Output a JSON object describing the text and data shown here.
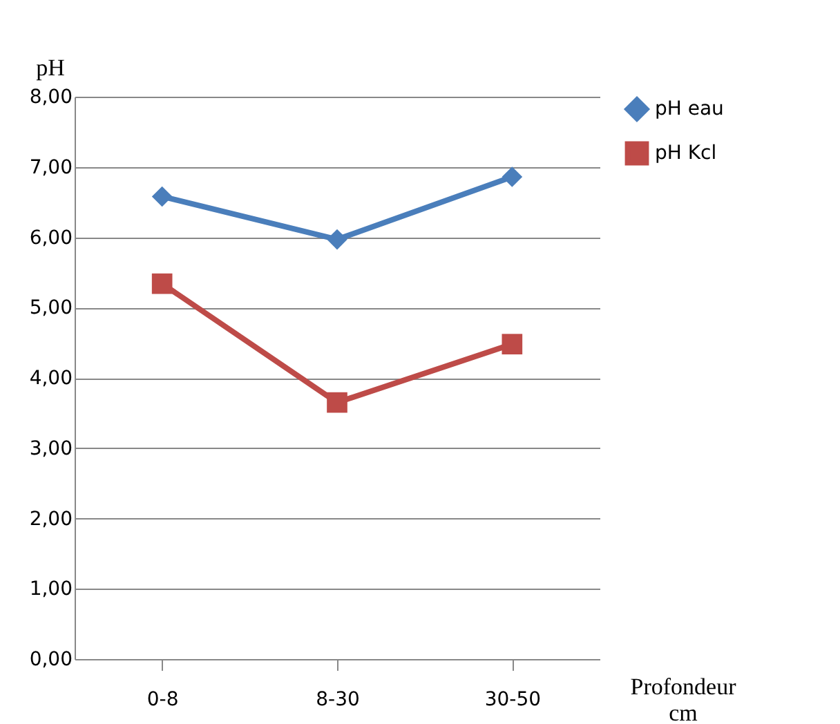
{
  "chart_data": {
    "type": "line",
    "ylabel": "pH",
    "xlabel": "Profondeur cm",
    "categories": [
      "0-8",
      "8-30",
      "30-50"
    ],
    "series": [
      {
        "name": "pH eau",
        "color": "#4a7ebb",
        "marker": "diamond",
        "values": [
          6.58,
          5.97,
          6.86
        ]
      },
      {
        "name": "pH Kcl",
        "color": "#be4b48",
        "marker": "square",
        "values": [
          5.34,
          3.65,
          4.48
        ]
      }
    ],
    "ylim": [
      0,
      8
    ],
    "yticks": [
      {
        "value": 0,
        "label": "0,00"
      },
      {
        "value": 1,
        "label": "1,00"
      },
      {
        "value": 2,
        "label": "2,00"
      },
      {
        "value": 3,
        "label": "3,00"
      },
      {
        "value": 4,
        "label": "4,00"
      },
      {
        "value": 5,
        "label": "5,00"
      },
      {
        "value": 6,
        "label": "6,00"
      },
      {
        "value": 7,
        "label": "7,00"
      },
      {
        "value": 8,
        "label": "8,00"
      }
    ],
    "grid": "y",
    "legend": "right",
    "line_style": "solid"
  }
}
